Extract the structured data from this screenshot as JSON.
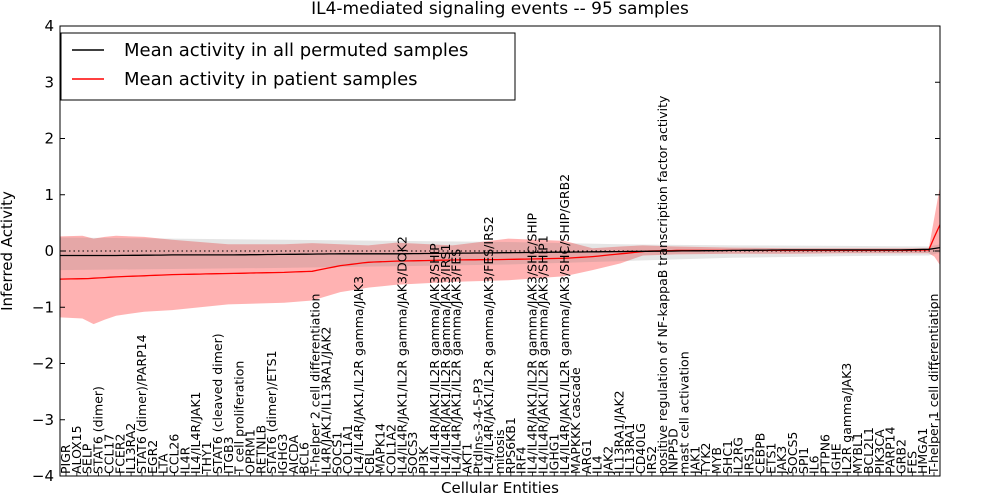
{
  "chart_data": {
    "type": "line",
    "title": "IL4-mediated signaling events -- 95 samples",
    "xlabel": "Cellular Entities",
    "ylabel": "Inferred Activity",
    "ylim": [
      -4,
      4
    ],
    "yticks": [
      -4,
      -3,
      -2,
      -1,
      0,
      1,
      2,
      3,
      4
    ],
    "ytick_labels": [
      "−4",
      "−3",
      "−2",
      "−1",
      "0",
      "1",
      "2",
      "3",
      "4"
    ],
    "zero_line": "dotted",
    "legend": {
      "position": "top-left",
      "entries": [
        {
          "label": "Mean activity in all permuted samples",
          "color": "#000000"
        },
        {
          "label": "Mean activity in patient samples",
          "color": "#ff0000"
        }
      ]
    },
    "n_points": 158,
    "categories": [
      "PIGR",
      "ALOX15",
      "SELP",
      "STAT6 (dimer)",
      "CCL17",
      "FCER2",
      "IL13RA2",
      "STAT6 (dimer)/PARP14",
      "EGR2",
      "LTA",
      "CCL26",
      "IL4R",
      "IL4/IL4R/JAK1",
      "THY1",
      "STAT6 (cleaved dimer)",
      "ITGB3",
      "T cell proliferation",
      "OPRM1",
      "RETNLB",
      "STAT6 (dimer)/ETS1",
      "IGHG3",
      "AICDA",
      "BCL6",
      "T-helper 2 cell differentiation",
      "IL4R/JAK1/IL13RA1/JAK2",
      "SOCS1",
      "COL1A1",
      "IL4/IL4R/JAK1/IL2R gamma/JAK3",
      "CBL",
      "MAPK14",
      "COL1A2",
      "IL4/IL4R/JAK1/IL2R gamma/JAK3/DOK2",
      "SOCS3",
      "PI3K",
      "IL4/IL4R/JAK1/IL2R gamma/JAK3/SHIP",
      "IL4/IL4R/JAK1/IL2R gamma/JAK3/IRS1",
      "IL4/IL4R/JAK1/IL2R gamma/JAK3/FES",
      "AKT1",
      "PtdIns-3-4-5-P3",
      "IL4/IL4R/JAK1/IL2R gamma/JAK3/FES/IRS2",
      "mitosis",
      "RPS6KB1",
      "IRF4",
      "IL4/IL4R/JAK1/IL2R gamma/JAK3/SHC/SHIP",
      "IL4/IL4R/JAK1/IL2R gamma/JAK3/SHIP1",
      "IGHG1",
      "IL4/IL4R/JAK1/IL2R gamma/JAK3/SHC/SHIP/GRB2",
      "MAPKKK cascade",
      "ARG1",
      "IL4",
      "JAK2",
      "IL13RA1/JAK2",
      "IL13RA1",
      "CD40LG",
      "IRS2",
      "positive regulation of NF-kappaB transcription factor activity",
      "INPP5D",
      "mast cell activation",
      "JAK1",
      "TYK2",
      "MYB",
      "SHC1",
      "IL2RG",
      "IRS1",
      "CEBPB",
      "ETS1",
      "JAK3",
      "SOCS5",
      "SPI1",
      "IL6",
      "PTPN6",
      "IGHE",
      "IL2R gamma/JAK3",
      "MYBL1",
      "BCL2L1",
      "PIK3CA",
      "PARP14",
      "GRB2",
      "FES",
      "HMGA1",
      "T-helper 1 cell differentiation"
    ],
    "series": [
      {
        "name": "Mean activity in all permuted samples",
        "color": "#000000",
        "x": [
          0,
          10,
          20,
          30,
          40,
          50,
          60,
          70,
          80,
          90,
          100,
          110,
          120,
          130,
          140,
          150,
          155,
          157
        ],
        "values": [
          -0.08,
          -0.08,
          -0.07,
          -0.07,
          -0.06,
          -0.05,
          -0.05,
          -0.04,
          -0.03,
          -0.02,
          -0.01,
          0.0,
          0.01,
          0.02,
          0.02,
          0.02,
          0.03,
          0.06
        ]
      },
      {
        "name": "Mean activity in patient samples",
        "color": "#ff0000",
        "x": [
          0,
          5,
          10,
          20,
          30,
          40,
          45,
          50,
          55,
          60,
          70,
          80,
          90,
          95,
          100,
          105,
          110,
          120,
          130,
          140,
          150,
          155,
          156,
          157
        ],
        "values": [
          -0.5,
          -0.49,
          -0.46,
          -0.42,
          -0.4,
          -0.38,
          -0.36,
          -0.26,
          -0.2,
          -0.18,
          -0.16,
          -0.15,
          -0.13,
          -0.1,
          -0.05,
          0.0,
          0.01,
          0.01,
          0.01,
          0.01,
          0.01,
          0.02,
          0.25,
          0.47
        ]
      }
    ],
    "patient_band": {
      "x": [
        0,
        4,
        6,
        8,
        10,
        15,
        20,
        30,
        40,
        45,
        50,
        55,
        60,
        70,
        80,
        90,
        95,
        100,
        104,
        110,
        120,
        130,
        140,
        150,
        155,
        156,
        157
      ],
      "upper": [
        0.26,
        0.27,
        0.22,
        0.25,
        0.27,
        0.25,
        0.2,
        0.12,
        0.12,
        0.14,
        0.12,
        0.1,
        0.15,
        0.1,
        0.22,
        0.18,
        0.05,
        0.08,
        0.1,
        0.08,
        0.06,
        0.05,
        0.05,
        0.05,
        0.05,
        0.6,
        1.15
      ],
      "lower": [
        -1.18,
        -1.2,
        -1.3,
        -1.22,
        -1.15,
        -1.08,
        -1.05,
        -0.95,
        -0.92,
        -0.88,
        -0.73,
        -0.65,
        -0.6,
        -0.55,
        -0.52,
        -0.45,
        -0.34,
        -0.22,
        -0.08,
        -0.06,
        -0.05,
        -0.05,
        -0.04,
        -0.04,
        -0.04,
        -0.1,
        -0.25
      ]
    },
    "perm_band": {
      "x": [
        0,
        20,
        40,
        60,
        80,
        100,
        120,
        140,
        155,
        157
      ],
      "upper": [
        0.24,
        0.22,
        0.2,
        0.18,
        0.16,
        0.12,
        0.1,
        0.09,
        0.08,
        0.12
      ],
      "lower": [
        -0.34,
        -0.32,
        -0.3,
        -0.27,
        -0.24,
        -0.18,
        -0.12,
        -0.09,
        -0.08,
        -0.03
      ]
    }
  }
}
